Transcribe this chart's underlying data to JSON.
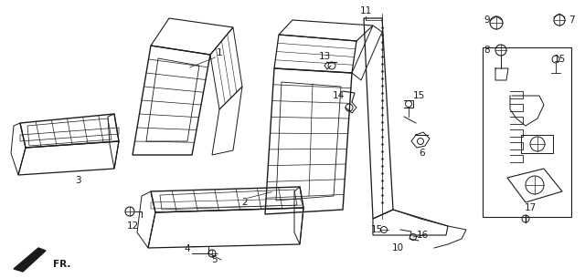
{
  "bg_color": "#ffffff",
  "line_color": "#1a1a1a",
  "fig_width": 6.4,
  "fig_height": 3.05,
  "dpi": 100
}
